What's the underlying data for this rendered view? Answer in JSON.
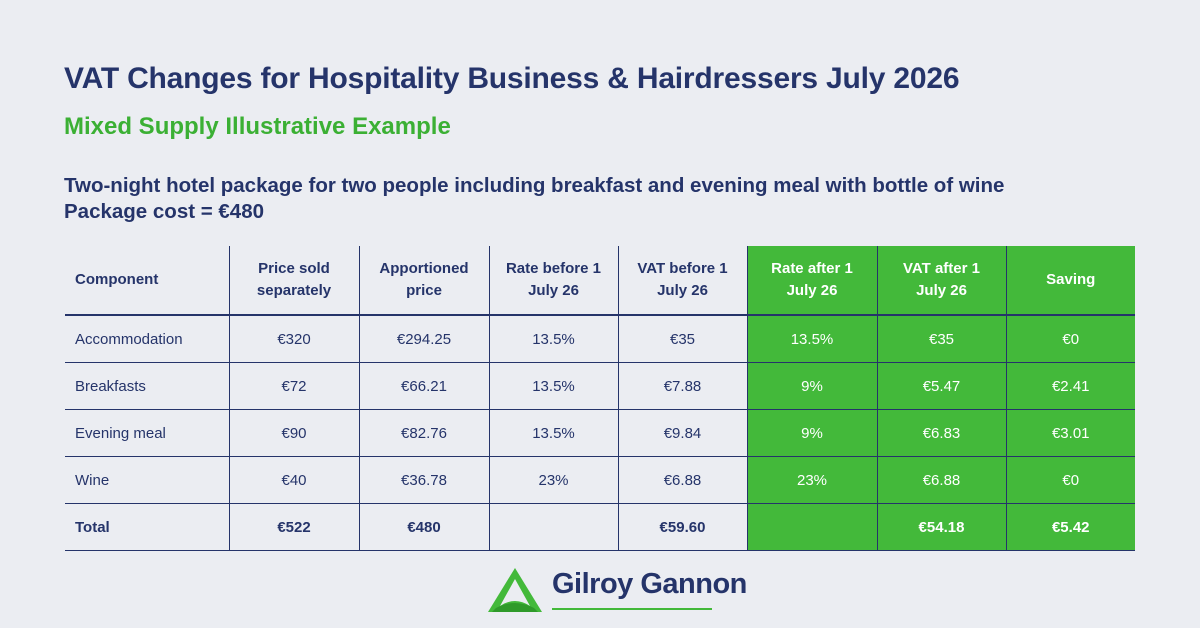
{
  "header": {
    "title": "VAT Changes for Hospitality Business & Hairdressers July 2026",
    "subtitle": "Mixed Supply Illustrative Example",
    "intro_line1": "Two-night hotel package for two people including breakfast and evening meal with bottle of wine",
    "intro_line2": "Package cost = €480"
  },
  "table": {
    "columns": [
      [
        "Component"
      ],
      [
        "Price sold",
        "separately"
      ],
      [
        "Apportioned",
        "price"
      ],
      [
        "Rate before 1",
        "July 26"
      ],
      [
        "VAT before 1",
        "July 26"
      ],
      [
        "Rate after 1",
        "July 26"
      ],
      [
        "VAT after 1",
        "July 26"
      ],
      [
        "Saving"
      ]
    ],
    "rows": [
      [
        "Accommodation",
        "€320",
        "€294.25",
        "13.5%",
        "€35",
        "13.5%",
        "€35",
        "€0"
      ],
      [
        "Breakfasts",
        "€72",
        "€66.21",
        "13.5%",
        "€7.88",
        "9%",
        "€5.47",
        "€2.41"
      ],
      [
        "Evening meal",
        "€90",
        "€82.76",
        "13.5%",
        "€9.84",
        "9%",
        "€6.83",
        "€3.01"
      ],
      [
        "Wine",
        "€40",
        "€36.78",
        "23%",
        "€6.88",
        "23%",
        "€6.88",
        "€0"
      ],
      [
        "Total",
        "€522",
        "€480",
        "",
        "€59.60",
        "",
        "€54.18",
        "€5.42"
      ]
    ]
  },
  "logo": {
    "name": "Gilroy Gannon"
  },
  "colors": {
    "navy": "#25346a",
    "green": "#43b93a",
    "subtitle_green": "#3bb034",
    "background": "#ebedf2"
  }
}
